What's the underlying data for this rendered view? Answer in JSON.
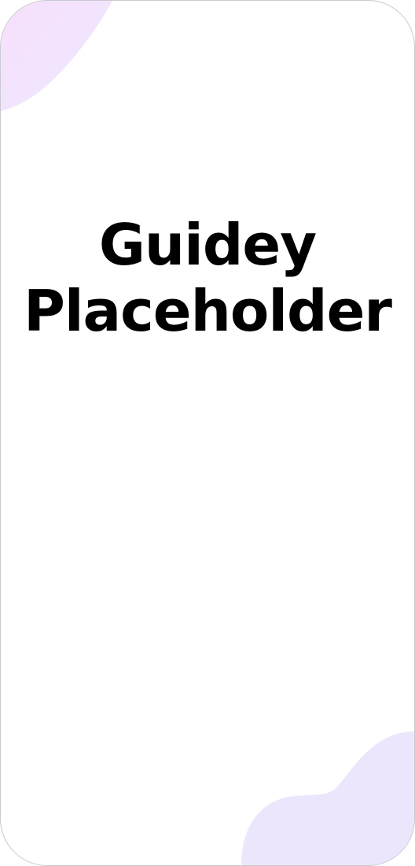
{
  "screen": {
    "title_line1": "Guidey",
    "title_line2": "Placeholder"
  },
  "colors": {
    "background": "#ffffff",
    "blob_top_start": "#f4dcfb",
    "blob_top_end": "#e9e6ff",
    "blob_bottom": "#ece6fd",
    "title_text": "#000000"
  }
}
